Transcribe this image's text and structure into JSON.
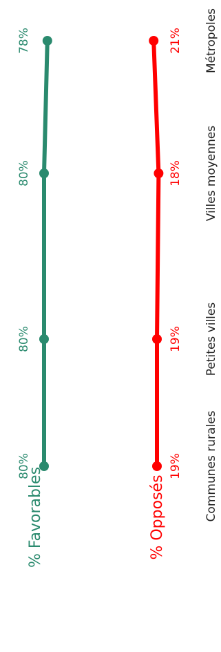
{
  "chart_data": {
    "type": "line",
    "categories": [
      "Communes rurales",
      "Petites villes",
      "Villes moyennes",
      "Métropoles"
    ],
    "series": [
      {
        "name": "% Favorables",
        "color": "#2a8a6e",
        "values": [
          80,
          80,
          80,
          78
        ],
        "labels": [
          "80%",
          "80%",
          "80%",
          "78%"
        ]
      },
      {
        "name": "% Opposés",
        "color": "#ff0000",
        "values": [
          19,
          19,
          18,
          21
        ],
        "labels": [
          "19%",
          "19%",
          "18%",
          "21%"
        ]
      }
    ],
    "orientation": "rotated -90°",
    "grid": false,
    "legend": "bottom"
  }
}
